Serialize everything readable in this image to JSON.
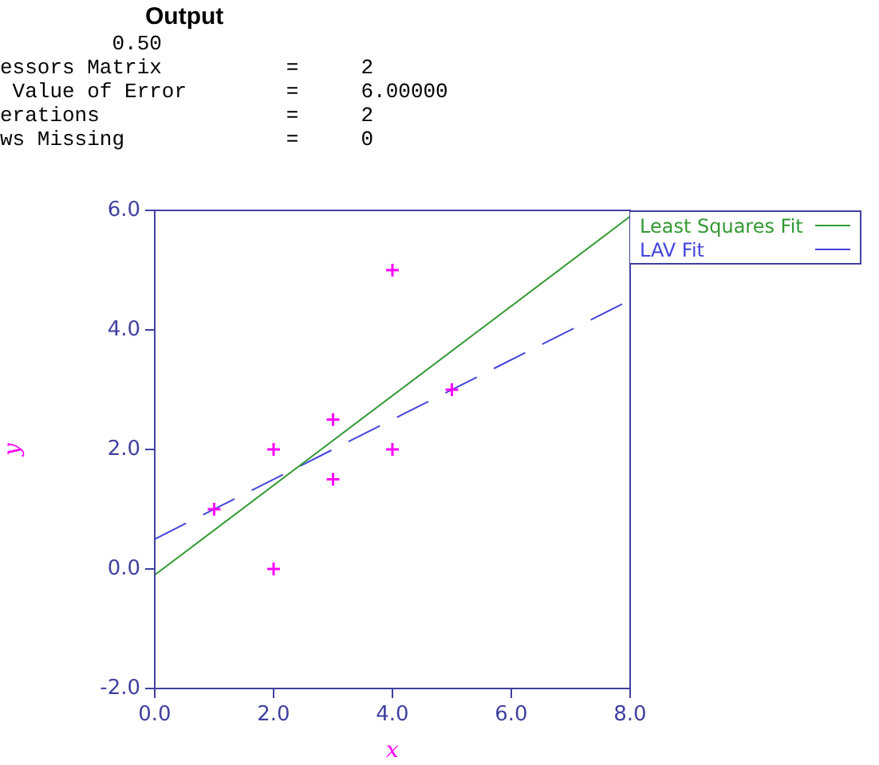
{
  "chart_data": {
    "type": "scatter",
    "xlabel": "x",
    "ylabel": "y",
    "annotations": [
      "Output",
      "         0.50",
      "essors Matrix          =     2",
      " Value of Error        =     6.00000",
      "erations               =     2",
      "ws Missing             =     0"
    ],
    "xlim": [
      0,
      8
    ],
    "ylim": [
      -2,
      6
    ],
    "xticks": [
      {
        "value": 0,
        "label": "0.0"
      },
      {
        "value": 2,
        "label": "2.0"
      },
      {
        "value": 4,
        "label": "4.0"
      },
      {
        "value": 6,
        "label": "6.0"
      },
      {
        "value": 8,
        "label": "8.0"
      }
    ],
    "yticks": [
      {
        "value": -2,
        "label": "-2.0"
      },
      {
        "value": 0,
        "label": "0.0"
      },
      {
        "value": 2,
        "label": "2.0"
      },
      {
        "value": 4,
        "label": "4.0"
      },
      {
        "value": 6,
        "label": "6.0"
      }
    ],
    "grid": false,
    "legend": "top right",
    "marker": "cross",
    "series": [
      {
        "type": "scatter",
        "color": "#ff00ff",
        "x": [
          1,
          2,
          2,
          3,
          3,
          4,
          4,
          5
        ],
        "values": [
          1,
          2,
          0,
          2.5,
          1.5,
          5,
          2,
          3
        ]
      },
      {
        "type": "line",
        "name": "Least Squares Fit",
        "color": "#339933",
        "x": [
          0,
          8
        ],
        "values": [
          -0.1,
          5.9
        ],
        "line_style": "solid",
        "marker": "none"
      },
      {
        "type": "line",
        "name": "LAV Fit",
        "color": "#4444dd",
        "x": [
          0,
          8
        ],
        "values": [
          0.5,
          4.5
        ],
        "line_style": "dashed",
        "marker": "none"
      }
    ]
  }
}
